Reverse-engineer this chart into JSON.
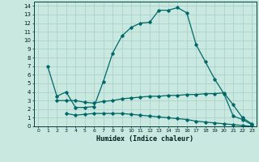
{
  "xlabel": "Humidex (Indice chaleur)",
  "ylabel": "",
  "background_color": "#c8e8e0",
  "grid_color": "#a8ccc8",
  "line_color": "#006868",
  "xlim": [
    -0.5,
    23.5
  ],
  "ylim": [
    0,
    14.5
  ],
  "xticks": [
    0,
    1,
    2,
    3,
    4,
    5,
    6,
    7,
    8,
    9,
    10,
    11,
    12,
    13,
    14,
    15,
    16,
    17,
    18,
    19,
    20,
    21,
    22,
    23
  ],
  "yticks": [
    0,
    1,
    2,
    3,
    4,
    5,
    6,
    7,
    8,
    9,
    10,
    11,
    12,
    13,
    14
  ],
  "line1_x": [
    1,
    2,
    3,
    4,
    5,
    6,
    7,
    8,
    9,
    10,
    11,
    12,
    13,
    14,
    15,
    16,
    17,
    18,
    19,
    20,
    21,
    22,
    23
  ],
  "line1_y": [
    7.0,
    3.5,
    4.0,
    2.2,
    2.2,
    2.3,
    5.2,
    8.5,
    10.5,
    11.5,
    12.0,
    12.1,
    13.5,
    13.5,
    13.8,
    13.2,
    9.5,
    7.5,
    5.5,
    3.8,
    1.2,
    0.8,
    0.2
  ],
  "line2_x": [
    2,
    3,
    4,
    5,
    6,
    7,
    8,
    9,
    10,
    11,
    12,
    13,
    14,
    15,
    16,
    17,
    18,
    19,
    20,
    21,
    22,
    23
  ],
  "line2_y": [
    3.0,
    3.0,
    3.0,
    2.8,
    2.7,
    2.9,
    3.0,
    3.2,
    3.3,
    3.4,
    3.5,
    3.5,
    3.6,
    3.6,
    3.7,
    3.7,
    3.8,
    3.8,
    3.9,
    2.5,
    1.0,
    0.3
  ],
  "line3_x": [
    3,
    4,
    5,
    6,
    7,
    8,
    9,
    10,
    11,
    12,
    13,
    14,
    15,
    16,
    17,
    18,
    19,
    20,
    21,
    22,
    23
  ],
  "line3_y": [
    1.5,
    1.3,
    1.4,
    1.5,
    1.5,
    1.5,
    1.5,
    1.4,
    1.3,
    1.2,
    1.1,
    1.0,
    0.9,
    0.8,
    0.6,
    0.5,
    0.4,
    0.3,
    0.2,
    0.1,
    0.0
  ]
}
